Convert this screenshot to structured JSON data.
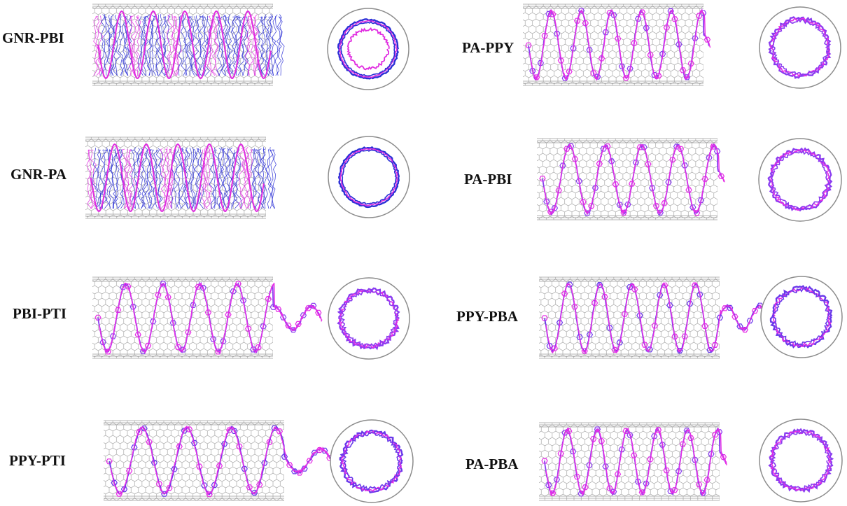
{
  "figure": {
    "panels": [
      {
        "id": "gnr-pbi",
        "label": "GNR-PBI",
        "style": "dense",
        "colors": [
          "#2a2fd6",
          "#e02be0"
        ]
      },
      {
        "id": "pa-ppy",
        "label": "PA-PPY",
        "style": "helix",
        "colors": [
          "#8a3cf0",
          "#e62de6"
        ]
      },
      {
        "id": "gnr-pa",
        "label": "GNR-PA",
        "style": "dense",
        "colors": [
          "#2a2fd6",
          "#e02be0"
        ]
      },
      {
        "id": "pa-pbi",
        "label": "PA-PBI",
        "style": "helix",
        "colors": [
          "#8a3cf0",
          "#e62de6"
        ]
      },
      {
        "id": "pbi-pti",
        "label": "PBI-PTI",
        "style": "helix",
        "colors": [
          "#8a3cf0",
          "#e62de6"
        ]
      },
      {
        "id": "ppy-pba",
        "label": "PPY-PBA",
        "style": "helix",
        "colors": [
          "#6a38ea",
          "#e62de6"
        ]
      },
      {
        "id": "ppy-pti",
        "label": "PPY-PTI",
        "style": "helix",
        "colors": [
          "#6a38ea",
          "#e62de6"
        ]
      },
      {
        "id": "pa-pba",
        "label": "PA-PBA",
        "style": "helix",
        "colors": [
          "#8a3cf0",
          "#e62de6"
        ]
      }
    ],
    "tube_color": "#9a9a9a",
    "ring_color": "#8c8c8c"
  }
}
